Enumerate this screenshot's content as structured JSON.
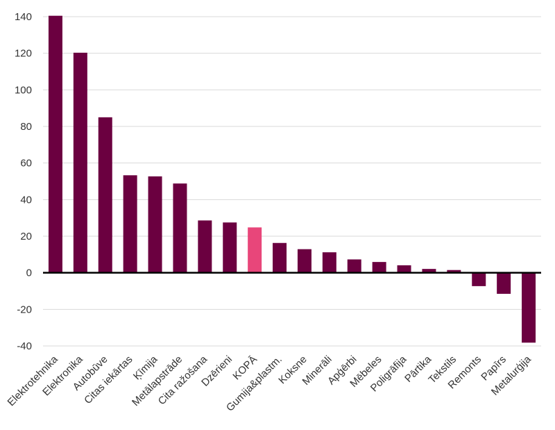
{
  "chart_data": {
    "type": "bar",
    "title": "",
    "xlabel": "",
    "ylabel": "",
    "ylim": [
      -40,
      140
    ],
    "yticks": [
      -40,
      -20,
      0,
      20,
      40,
      60,
      80,
      100,
      120,
      140
    ],
    "ytick_labels": [
      "-40",
      "-20",
      "0",
      "20",
      "40",
      "60",
      "80",
      "100",
      "120",
      "140"
    ],
    "grid": true,
    "legend": "none",
    "categories": [
      "Elektrotehnika",
      "Elektronika",
      "Autobūve",
      "Citas iekārtas",
      "Ķīmija",
      "Metālapstrāde",
      "Cita ražošana",
      "Dzērieni",
      "KOPĀ",
      "Gumija&plastm.",
      "Koksne",
      "Minerāli",
      "Apģērbi",
      "Mēbeles",
      "Poligrāfija",
      "Pārtika",
      "Tekstils",
      "Remonts",
      "Papīrs",
      "Metalurģija"
    ],
    "values": [
      140.5,
      120.3,
      85,
      53.3,
      52.7,
      48.8,
      28.6,
      27.5,
      24.8,
      16.3,
      12.9,
      11.2,
      7.3,
      5.9,
      4.1,
      2.1,
      1.5,
      -7.3,
      -11.5,
      -38.2
    ],
    "colors": {
      "default": "#6b0040",
      "highlight": "#e8467a",
      "grid": "#d9d9d9",
      "zero_line": "#000000"
    },
    "highlight_category": "KOPĀ"
  }
}
